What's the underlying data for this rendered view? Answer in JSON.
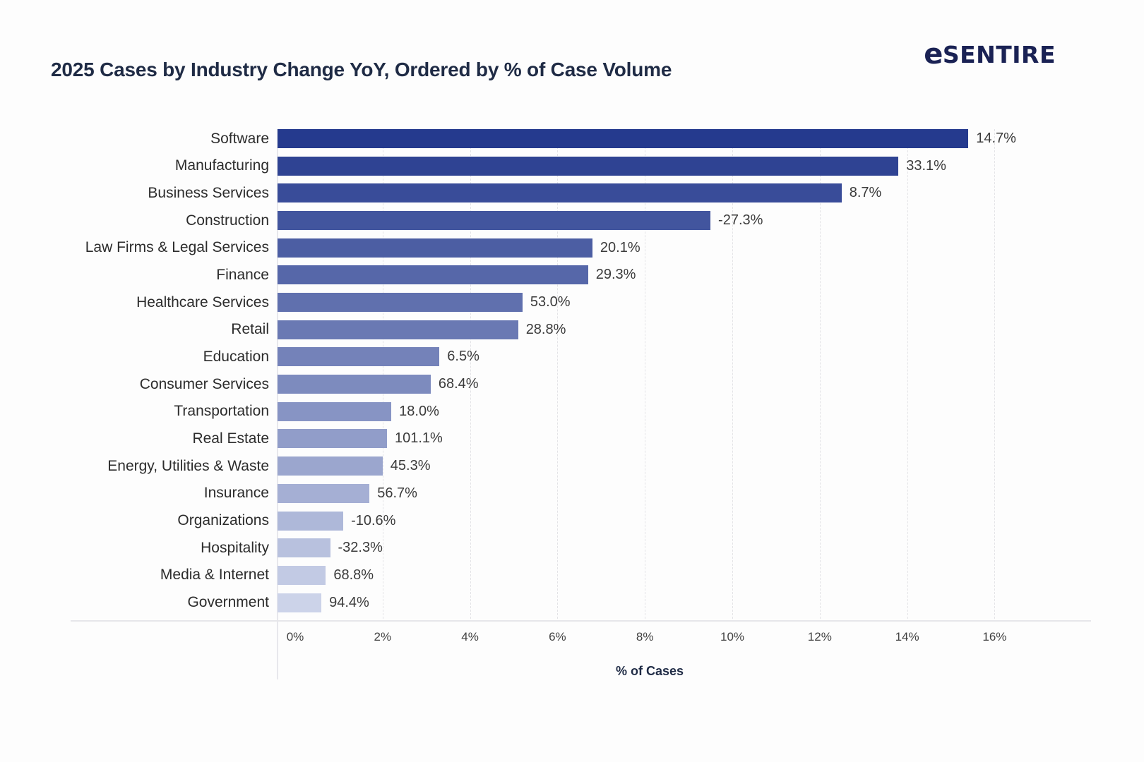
{
  "header": {
    "title": "2025 Cases by Industry Change YoY, Ordered by % of Case Volume",
    "logo_e": "e",
    "logo_rest": "SENTIRE"
  },
  "colors": {
    "title_navy": "#1f2b45",
    "logo_navy": "#1a2254",
    "label_dark": "#2c2c2c",
    "value_gray": "#3b3b3b",
    "tick_gray": "#424242",
    "gridline": "#e3e3e6",
    "axis_line": "#e6e6ea",
    "background": "#fdfdfd"
  },
  "chart_data": {
    "type": "bar",
    "orientation": "horizontal",
    "title": "2025 Cases by Industry Change YoY, Ordered by % of Case Volume",
    "xlabel": "% of Cases",
    "ylabel": "",
    "xlim": [
      0,
      17
    ],
    "grid": "vertical-dashed",
    "x_tick_values": [
      0,
      2,
      4,
      6,
      8,
      10,
      12,
      14,
      16
    ],
    "x_tick_labels": [
      "0%",
      "2%",
      "4%",
      "6%",
      "8%",
      "10%",
      "12%",
      "14%",
      "16%"
    ],
    "categories": [
      "Software",
      "Manufacturing",
      "Business Services",
      "Construction",
      "Law Firms & Legal Services",
      "Finance",
      "Healthcare Services",
      "Retail",
      "Education",
      "Consumer Services",
      "Transportation",
      "Real Estate",
      "Energy, Utilities & Waste",
      "Insurance",
      "Organizations",
      "Hospitality",
      "Media & Internet",
      "Government"
    ],
    "series": [
      {
        "name": "% of Cases (bar length, estimated from axis)",
        "values": [
          15.4,
          13.8,
          12.5,
          9.5,
          6.8,
          6.7,
          5.2,
          5.1,
          3.3,
          3.1,
          2.2,
          2.1,
          2.0,
          1.7,
          1.1,
          0.8,
          0.7,
          0.6
        ]
      },
      {
        "name": "YoY Change (data labels)",
        "values": [
          14.7,
          33.1,
          8.7,
          -27.3,
          20.1,
          29.3,
          53.0,
          28.8,
          6.5,
          68.4,
          18.0,
          101.1,
          45.3,
          56.7,
          -10.6,
          -32.3,
          68.8,
          94.4
        ]
      }
    ],
    "bar_labels": [
      "14.7%",
      "33.1%",
      "8.7%",
      "-27.3%",
      "20.1%",
      "29.3%",
      "53.0%",
      "28.8%",
      "6.5%",
      "68.4%",
      "18.0%",
      "101.1%",
      "45.3%",
      "56.7%",
      "-10.6%",
      "-32.3%",
      "68.8%",
      "94.4%"
    ],
    "bar_colors": [
      "#253A8E",
      "#2F4393",
      "#394C99",
      "#42559E",
      "#4C5EA3",
      "#5667A9",
      "#6070AE",
      "#6A79B3",
      "#7482B9",
      "#7D8BBE",
      "#8794C4",
      "#919DC9",
      "#9BA6CE",
      "#A5AFD4",
      "#AEB8D9",
      "#B8C1DE",
      "#C2CAE4",
      "#CCD3E9"
    ],
    "legend": "none"
  }
}
